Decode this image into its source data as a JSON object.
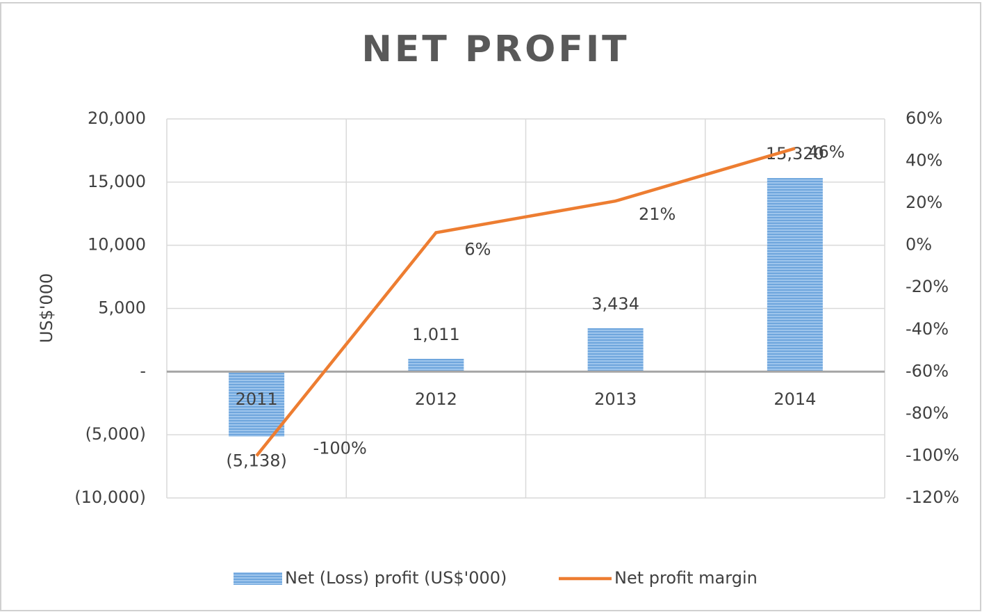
{
  "chart_data": {
    "type": "bar-line",
    "title": "NET PROFIT",
    "y_label": "US$'000",
    "categories": [
      "2011",
      "2012",
      "2013",
      "2014"
    ],
    "series": [
      {
        "name": "Net (Loss) profit (US$'000)",
        "type": "bar",
        "color": "#7fb2e5",
        "values": [
          -5138,
          1011,
          3434,
          15320
        ],
        "value_labels": [
          "(5,138)",
          "1,011",
          "3,434",
          "15,320"
        ]
      },
      {
        "name": "Net profit margin",
        "type": "line",
        "axis": "y2",
        "color": "#ed7d31",
        "values": [
          -100,
          6,
          21,
          46
        ],
        "value_labels": [
          "-100%",
          "6%",
          "21%",
          "46%"
        ]
      }
    ],
    "ylim": [
      -10000,
      20000
    ],
    "yticks": [
      {
        "value": -10000,
        "label": "(10,000)"
      },
      {
        "value": -5000,
        "label": "(5,000)"
      },
      {
        "value": 0,
        "label": "-"
      },
      {
        "value": 5000,
        "label": "5,000"
      },
      {
        "value": 10000,
        "label": "10,000"
      },
      {
        "value": 15000,
        "label": "15,000"
      },
      {
        "value": 20000,
        "label": "20,000"
      }
    ],
    "y2lim": [
      -120,
      60
    ],
    "y2ticks": [
      {
        "value": -120,
        "label": "-120%"
      },
      {
        "value": -100,
        "label": "-100%"
      },
      {
        "value": -80,
        "label": "-80%"
      },
      {
        "value": -60,
        "label": "-60%"
      },
      {
        "value": -40,
        "label": "-40%"
      },
      {
        "value": -20,
        "label": "-20%"
      },
      {
        "value": 0,
        "label": "0%"
      },
      {
        "value": 20,
        "label": "20%"
      },
      {
        "value": 40,
        "label": "40%"
      },
      {
        "value": 60,
        "label": "60%"
      }
    ],
    "grid": true,
    "legend": "bottom"
  }
}
